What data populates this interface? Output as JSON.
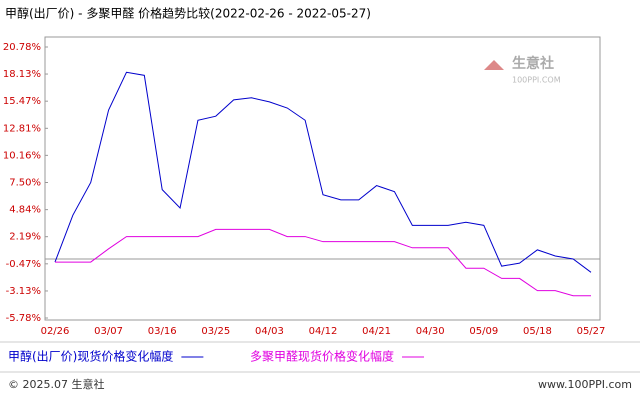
{
  "chart_data": {
    "type": "line",
    "title": "甲醇(出厂价) - 多聚甲醛 价格趋势比较(2022-02-26 - 2022-05-27)",
    "categories": [
      "02/26",
      null,
      null,
      "03/07",
      null,
      null,
      "03/16",
      null,
      null,
      "03/25",
      null,
      null,
      "04/03",
      null,
      null,
      "04/12",
      null,
      null,
      "04/21",
      null,
      null,
      "04/30",
      null,
      null,
      "05/09",
      null,
      null,
      "05/18",
      null,
      null,
      "05/27"
    ],
    "series": [
      {
        "name": "甲醇(出厂价)现货价格变化幅度",
        "color": "#0000cc",
        "values": [
          -0.3,
          4.3,
          7.5,
          14.6,
          18.3,
          18.0,
          6.8,
          5.0,
          13.6,
          14.0,
          15.6,
          15.8,
          15.4,
          14.8,
          13.6,
          6.3,
          5.8,
          5.8,
          7.2,
          6.6,
          3.3,
          3.3,
          3.3,
          3.6,
          3.3,
          -0.7,
          -0.4,
          0.9,
          0.3,
          0.0,
          -1.3
        ]
      },
      {
        "name": "多聚甲醛现货价格变化幅度",
        "color": "#e000e0",
        "values": [
          -0.3,
          -0.3,
          -0.3,
          1.0,
          2.2,
          2.2,
          2.2,
          2.2,
          2.2,
          2.9,
          2.9,
          2.9,
          2.9,
          2.2,
          2.2,
          1.7,
          1.7,
          1.7,
          1.7,
          1.7,
          1.1,
          1.1,
          1.1,
          -0.9,
          -0.9,
          -1.9,
          -1.9,
          -3.1,
          -3.1,
          -3.6,
          -3.6
        ]
      }
    ],
    "ylim": [
      -5.78,
      20.78
    ],
    "yticks": [
      {
        "value": -5.78,
        "label": "-5.78%"
      },
      {
        "value": -3.13,
        "label": "-3.13%"
      },
      {
        "value": -0.47,
        "label": "-0.47%"
      },
      {
        "value": 2.19,
        "label": "2.19%"
      },
      {
        "value": 4.84,
        "label": "4.84%"
      },
      {
        "value": 7.5,
        "label": "7.50%"
      },
      {
        "value": 10.16,
        "label": "10.16%"
      },
      {
        "value": 12.81,
        "label": "12.81%"
      },
      {
        "value": 15.47,
        "label": "15.47%"
      },
      {
        "value": 18.13,
        "label": "18.13%"
      },
      {
        "value": 20.78,
        "label": "20.78%"
      }
    ]
  },
  "watermark": {
    "name": "生意社",
    "site": "100PPI.COM"
  },
  "footer": {
    "left": "© 2025.07 生意社",
    "right": "www.100PPI.com"
  }
}
